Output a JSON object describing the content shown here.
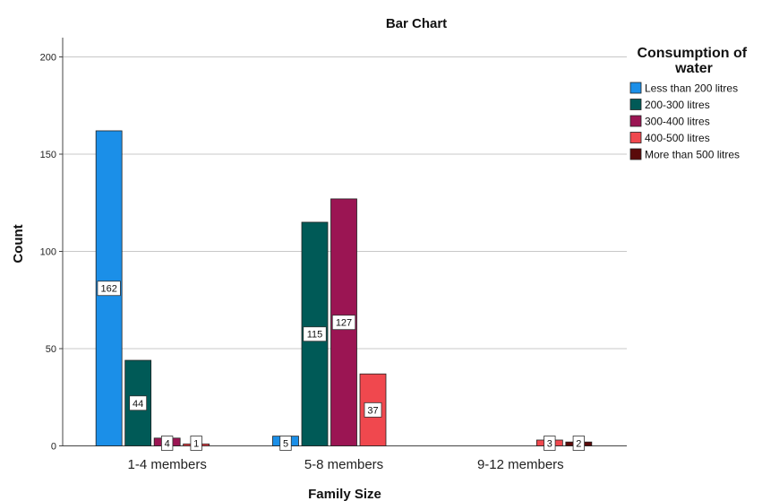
{
  "chart_data": {
    "type": "bar",
    "title": "Bar Chart",
    "xlabel": "Family Size",
    "ylabel": "Count",
    "categories": [
      "1-4 members",
      "5-8 members",
      "9-12 members"
    ],
    "ylim": [
      0,
      200
    ],
    "yticks": [
      0,
      50,
      100,
      150,
      200
    ],
    "grid": true,
    "legend": {
      "title": "Consumption of water",
      "placement": "top-right"
    },
    "series": [
      {
        "name": "Less than 200 litres",
        "color": "#1B8FE8",
        "values": [
          162,
          5,
          null
        ]
      },
      {
        "name": "200-300 litres",
        "color": "#005A57",
        "values": [
          44,
          115,
          null
        ]
      },
      {
        "name": "300-400 litres",
        "color": "#9B1553",
        "values": [
          4,
          127,
          null
        ]
      },
      {
        "name": "400-500 litres",
        "color": "#F0484E",
        "values": [
          1,
          37,
          3
        ]
      },
      {
        "name": "More than 500 litres",
        "color": "#5A0A0A",
        "values": [
          null,
          null,
          2
        ]
      }
    ]
  }
}
